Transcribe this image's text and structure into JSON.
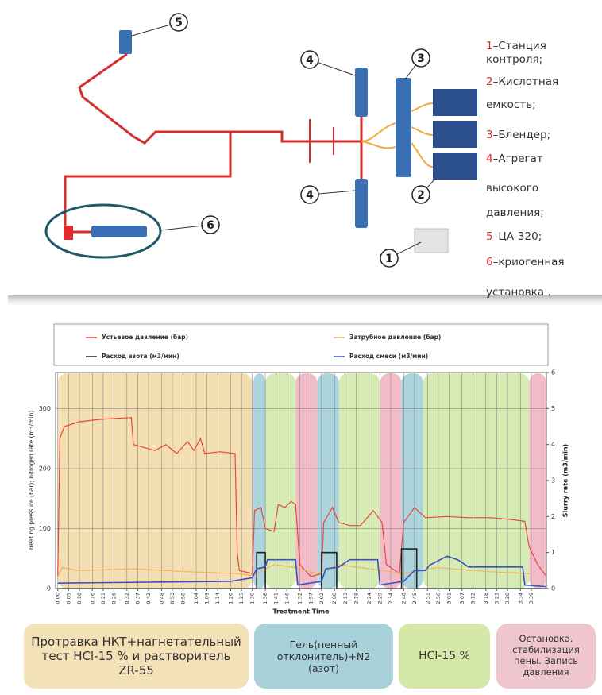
{
  "diagram": {
    "callouts": [
      "1",
      "2",
      "3",
      "4",
      "4",
      "5",
      "6"
    ],
    "legend": [
      {
        "number": "1",
        "lines": [
          "–Станция",
          "контроля;"
        ]
      },
      {
        "number": "2",
        "lines": [
          "–Кислотная",
          "емкость;"
        ]
      },
      {
        "number": "3",
        "lines": [
          "–Блендер;"
        ]
      },
      {
        "number": "4",
        "lines": [
          "–Агрегат",
          "высокого",
          "давления;"
        ]
      },
      {
        "number": "5",
        "lines": [
          "–ЦА-320;"
        ]
      },
      {
        "number": "6",
        "lines": [
          "–криогенная",
          "установка ."
        ]
      }
    ]
  },
  "chart_data": {
    "type": "line",
    "x_label": "Treatment Time",
    "y_label": "Treating pressure (bar); nitrogen rate (m3/min)",
    "y2_label": "Slurry rate (m3/min)",
    "xlim": [
      -1,
      226
    ],
    "ylim": [
      0,
      360
    ],
    "y2lim": [
      0,
      6
    ],
    "yticks": [
      0,
      100,
      200,
      300
    ],
    "y2ticks": [
      0,
      1,
      2,
      3,
      4,
      5,
      6
    ],
    "xticks": [
      {
        "value": 0,
        "label": "0:00"
      },
      {
        "value": 5,
        "label": "0:05"
      },
      {
        "value": 10,
        "label": "0:10"
      },
      {
        "value": 16,
        "label": "0:16"
      },
      {
        "value": 21,
        "label": "0:21"
      },
      {
        "value": 26,
        "label": "0:26"
      },
      {
        "value": 32,
        "label": "0:32"
      },
      {
        "value": 37,
        "label": "0:37"
      },
      {
        "value": 42,
        "label": "0:42"
      },
      {
        "value": 48,
        "label": "0:48"
      },
      {
        "value": 53,
        "label": "0:53"
      },
      {
        "value": 58,
        "label": "0:58"
      },
      {
        "value": 64,
        "label": "1:04"
      },
      {
        "value": 69,
        "label": "1:09"
      },
      {
        "value": 74,
        "label": "1:14"
      },
      {
        "value": 80,
        "label": "1:20"
      },
      {
        "value": 85,
        "label": "1:25"
      },
      {
        "value": 90,
        "label": "1:30"
      },
      {
        "value": 96,
        "label": "1:36"
      },
      {
        "value": 101,
        "label": "1:41"
      },
      {
        "value": 106,
        "label": "1:46"
      },
      {
        "value": 112,
        "label": "1:52"
      },
      {
        "value": 117,
        "label": "1:57"
      },
      {
        "value": 122,
        "label": "2:02"
      },
      {
        "value": 128,
        "label": "2:08"
      },
      {
        "value": 133,
        "label": "2:13"
      },
      {
        "value": 138,
        "label": "2:18"
      },
      {
        "value": 144,
        "label": "2:24"
      },
      {
        "value": 149,
        "label": "2:29"
      },
      {
        "value": 154,
        "label": "2:34"
      },
      {
        "value": 160,
        "label": "2:40"
      },
      {
        "value": 165,
        "label": "2:45"
      },
      {
        "value": 171,
        "label": "2:51"
      },
      {
        "value": 176,
        "label": "2:56"
      },
      {
        "value": 181,
        "label": "3:01"
      },
      {
        "value": 187,
        "label": "3:07"
      },
      {
        "value": 192,
        "label": "3:12"
      },
      {
        "value": 198,
        "label": "3:18"
      },
      {
        "value": 203,
        "label": "3:23"
      },
      {
        "value": 208,
        "label": "3:28"
      },
      {
        "value": 214,
        "label": "3:34"
      },
      {
        "value": 219,
        "label": "3:39"
      }
    ],
    "grid": true,
    "bands": [
      {
        "start": 0,
        "end": 90,
        "color": "#f4dfb2"
      },
      {
        "start": 90.5,
        "end": 96,
        "color": "#acd4dc"
      },
      {
        "start": 96,
        "end": 110,
        "color": "#d7ebb4"
      },
      {
        "start": 110,
        "end": 120,
        "color": "#f1bcc8"
      },
      {
        "start": 120,
        "end": 130,
        "color": "#acd4dc"
      },
      {
        "start": 130,
        "end": 149,
        "color": "#d7ebb4"
      },
      {
        "start": 149,
        "end": 159,
        "color": "#f1bcc8"
      },
      {
        "start": 159,
        "end": 169,
        "color": "#acd4dc"
      },
      {
        "start": 169,
        "end": 218,
        "color": "#d7ebb4"
      },
      {
        "start": 218,
        "end": 226,
        "color": "#f1bcc8"
      }
    ],
    "series": [
      {
        "name": "Устьевое давление (бар)",
        "color": "#e8473a",
        "x": [
          0,
          1,
          3,
          10,
          20,
          34,
          35,
          40,
          45,
          50,
          55,
          60,
          63,
          66,
          68,
          75,
          82,
          83,
          84,
          90,
          91,
          94,
          96,
          100,
          102,
          105,
          108,
          110,
          112,
          117,
          122,
          123,
          127,
          130,
          135,
          140,
          146,
          150,
          152,
          158,
          160,
          165,
          168,
          170,
          180,
          190,
          200,
          210,
          216,
          218,
          222,
          226
        ],
        "values": [
          20,
          250,
          270,
          278,
          282,
          285,
          240,
          235,
          230,
          240,
          225,
          245,
          230,
          250,
          225,
          228,
          225,
          60,
          30,
          25,
          130,
          135,
          100,
          95,
          140,
          135,
          145,
          140,
          40,
          20,
          25,
          110,
          135,
          110,
          105,
          105,
          130,
          110,
          40,
          25,
          110,
          135,
          125,
          118,
          120,
          118,
          118,
          115,
          112,
          70,
          40,
          20
        ]
      },
      {
        "name": "Затрубное давление (бар)",
        "color": "#f0b45a",
        "x": [
          0,
          2,
          10,
          35,
          60,
          83,
          90,
          100,
          110,
          120,
          130,
          150,
          160,
          175,
          200,
          218
        ],
        "values": [
          20,
          35,
          30,
          33,
          28,
          25,
          22,
          40,
          35,
          25,
          40,
          30,
          25,
          35,
          28,
          25
        ]
      },
      {
        "name": "Расход азота (м3/мин)",
        "color": "#222222",
        "axis": "y2",
        "x": [
          0,
          92,
          92,
          96,
          96,
          122,
          122,
          129,
          129,
          159,
          159,
          166,
          166,
          226
        ],
        "values": [
          0,
          0,
          1,
          1,
          0,
          0,
          1,
          1,
          0,
          0,
          1.1,
          1.1,
          0,
          0
        ]
      },
      {
        "name": "Расход смеси (м3/мин)",
        "color": "#3b4fc4",
        "axis": "y2",
        "x": [
          0,
          80,
          90,
          92,
          96,
          97,
          110,
          111,
          122,
          124,
          130,
          135,
          148,
          149,
          160,
          165,
          170,
          172,
          180,
          185,
          190,
          215,
          216,
          226
        ],
        "values": [
          0.15,
          0.2,
          0.3,
          0.55,
          0.6,
          0.8,
          0.8,
          0.1,
          0.2,
          0.55,
          0.6,
          0.8,
          0.8,
          0.1,
          0.2,
          0.5,
          0.5,
          0.65,
          0.9,
          0.8,
          0.6,
          0.6,
          0.1,
          0.05
        ]
      }
    ]
  },
  "phases": [
    {
      "text": "Протравка НКТ+нагнетательный тест HCl-15 % и растворитель ZR-55",
      "color": "#f3e2b8"
    },
    {
      "text": "Гель(пенный отклонитель)+N2 (азот)",
      "color": "#a9d1da"
    },
    {
      "text": "HCl-15 %",
      "color": "#d6e8a8"
    },
    {
      "text": "Остановка. стабилизация пены. Запись давления",
      "color": "#efc6cf"
    }
  ]
}
